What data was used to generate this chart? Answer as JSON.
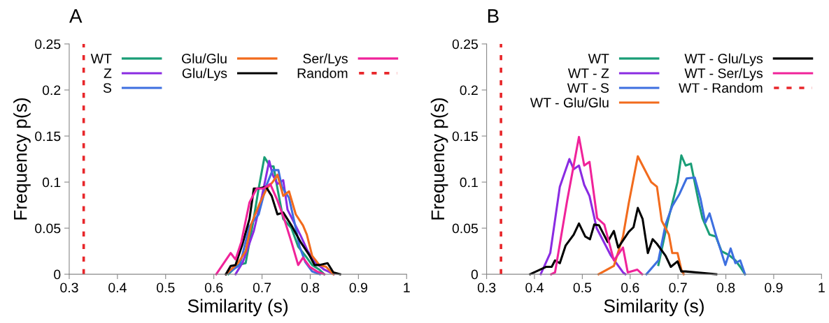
{
  "chart_data": [
    {
      "type": "line",
      "title": "A",
      "xlabel": "Similarity (s)",
      "ylabel": "Frequency p(s)",
      "xlim": [
        0.3,
        1
      ],
      "ylim": [
        0,
        0.25
      ],
      "xticks": [
        0.3,
        0.4,
        0.5,
        0.6,
        0.7,
        0.8,
        0.9,
        1
      ],
      "yticks": [
        0,
        0.05,
        0.1,
        0.15,
        0.2,
        0.25
      ],
      "grid": false,
      "legend": "top right",
      "marker": "none",
      "line_style": "solid",
      "series": [
        {
          "name": "WT",
          "color": "#1a9e77",
          "x": [
            0.63,
            0.65,
            0.666,
            0.681,
            0.693,
            0.705,
            0.717,
            0.724,
            0.732,
            0.744,
            0.761,
            0.775,
            0.79,
            0.804,
            0.819,
            0.829
          ],
          "values": [
            0,
            0.01,
            0.012,
            0.055,
            0.093,
            0.127,
            0.117,
            0.117,
            0.093,
            0.06,
            0.05,
            0.03,
            0.02,
            0.01,
            0.005,
            0
          ]
        },
        {
          "name": "Z",
          "color": "#8a2be2",
          "x": [
            0.645,
            0.66,
            0.683,
            0.7,
            0.715,
            0.722,
            0.732,
            0.744,
            0.753,
            0.78,
            0.795,
            0.81,
            0.829,
            0.849
          ],
          "values": [
            0,
            0.013,
            0.047,
            0.085,
            0.123,
            0.108,
            0.098,
            0.102,
            0.07,
            0.042,
            0.025,
            0.013,
            0.005,
            0
          ]
        },
        {
          "name": "S",
          "color": "#3d6fe0",
          "x": [
            0.625,
            0.654,
            0.674,
            0.693,
            0.708,
            0.722,
            0.734,
            0.741,
            0.756,
            0.77,
            0.778,
            0.79,
            0.804,
            0.82
          ],
          "values": [
            0,
            0.01,
            0.052,
            0.065,
            0.095,
            0.113,
            0.113,
            0.095,
            0.083,
            0.05,
            0.03,
            0.013,
            0.003,
            0
          ]
        },
        {
          "name": "Glu/Glu",
          "color": "#f26b1d",
          "x": [
            0.625,
            0.65,
            0.666,
            0.678,
            0.696,
            0.71,
            0.722,
            0.732,
            0.744,
            0.756,
            0.77,
            0.785,
            0.793,
            0.804,
            0.819,
            0.833,
            0.848
          ],
          "values": [
            0,
            0.012,
            0.025,
            0.055,
            0.078,
            0.093,
            0.1,
            0.108,
            0.085,
            0.09,
            0.065,
            0.053,
            0.043,
            0.02,
            0.01,
            0.008,
            0
          ]
        },
        {
          "name": "Glu/Lys",
          "color": "#000000",
          "x": [
            0.625,
            0.635,
            0.645,
            0.659,
            0.674,
            0.683,
            0.693,
            0.708,
            0.72,
            0.732,
            0.744,
            0.761,
            0.78,
            0.799,
            0.809,
            0.819,
            0.836,
            0.848,
            0.862
          ],
          "values": [
            0,
            0.009,
            0.01,
            0.032,
            0.06,
            0.093,
            0.093,
            0.095,
            0.085,
            0.065,
            0.067,
            0.053,
            0.035,
            0.02,
            0.01,
            0.01,
            0.012,
            0.002,
            0
          ]
        },
        {
          "name": "Ser/Lys",
          "color": "#f0239a",
          "x": [
            0.605,
            0.635,
            0.645,
            0.657,
            0.674,
            0.689,
            0.703,
            0.717,
            0.732,
            0.746,
            0.761,
            0.775,
            0.785,
            0.799,
            0.814,
            0.829
          ],
          "values": [
            0,
            0.023,
            0.016,
            0.035,
            0.078,
            0.093,
            0.093,
            0.098,
            0.08,
            0.06,
            0.035,
            0.01,
            0.018,
            0.008,
            0.003,
            0
          ]
        },
        {
          "name": "Random",
          "color": "#e8262a",
          "line_style": "dashed",
          "x": [
            0.33,
            0.33
          ],
          "values": [
            0,
            0.25
          ]
        }
      ]
    },
    {
      "type": "line",
      "title": "B",
      "xlabel": "Similarity (s)",
      "ylabel": "Frequency p(s)",
      "xlim": [
        0.3,
        1
      ],
      "ylim": [
        0,
        0.25
      ],
      "xticks": [
        0.3,
        0.4,
        0.5,
        0.6,
        0.7,
        0.8,
        0.9,
        1
      ],
      "yticks": [
        0,
        0.05,
        0.1,
        0.15,
        0.2,
        0.25
      ],
      "grid": false,
      "legend": "top right",
      "marker": "none",
      "line_style": "solid",
      "series": [
        {
          "name": "WT",
          "color": "#1a9e77",
          "x": [
            0.659,
            0.678,
            0.699,
            0.707,
            0.716,
            0.727,
            0.743,
            0.751,
            0.766,
            0.779,
            0.791,
            0.806,
            0.82,
            0.83,
            0.84
          ],
          "values": [
            0.01,
            0.056,
            0.1,
            0.129,
            0.118,
            0.12,
            0.079,
            0.061,
            0.043,
            0.041,
            0.025,
            0.021,
            0.015,
            0.008,
            0
          ]
        },
        {
          "name": "WT - Z",
          "color": "#8a2be2",
          "x": [
            0.413,
            0.433,
            0.453,
            0.473,
            0.482,
            0.493,
            0.504,
            0.515,
            0.53,
            0.56,
            0.585,
            0.59
          ],
          "values": [
            0,
            0.023,
            0.095,
            0.125,
            0.114,
            0.118,
            0.097,
            0.085,
            0.05,
            0.02,
            0.002,
            0
          ]
        },
        {
          "name": "WT - S",
          "color": "#3d6fe0",
          "x": [
            0.634,
            0.659,
            0.674,
            0.688,
            0.703,
            0.718,
            0.735,
            0.747,
            0.757,
            0.766,
            0.779,
            0.799,
            0.81,
            0.82,
            0.83,
            0.84
          ],
          "values": [
            0,
            0.015,
            0.054,
            0.074,
            0.087,
            0.104,
            0.105,
            0.082,
            0.056,
            0.066,
            0.043,
            0.01,
            0.028,
            0.012,
            0.015,
            0
          ]
        },
        {
          "name": "WT - Glu/Glu",
          "color": "#f26b1d",
          "x": [
            0.534,
            0.566,
            0.585,
            0.597,
            0.616,
            0.629,
            0.644,
            0.656,
            0.666,
            0.681,
            0.688,
            0.699,
            0.707,
            0.712
          ],
          "values": [
            0,
            0.009,
            0.041,
            0.077,
            0.128,
            0.115,
            0.1,
            0.095,
            0.058,
            0.043,
            0.023,
            0.023,
            0.005,
            0
          ]
        },
        {
          "name": "WT - Glu/Lys",
          "color": "#000000",
          "x": [
            0.391,
            0.424,
            0.436,
            0.443,
            0.453,
            0.465,
            0.482,
            0.493,
            0.506,
            0.516,
            0.525,
            0.535,
            0.553,
            0.566,
            0.575,
            0.597,
            0.607,
            0.616,
            0.626,
            0.637,
            0.647,
            0.656,
            0.674,
            0.685,
            0.699,
            0.707,
            0.716,
            0.78
          ],
          "values": [
            0,
            0.008,
            0.008,
            0.015,
            0.012,
            0.031,
            0.043,
            0.055,
            0.041,
            0.038,
            0.054,
            0.053,
            0.035,
            0.047,
            0.029,
            0.046,
            0.051,
            0.072,
            0.06,
            0.023,
            0.038,
            0.033,
            0.02,
            0.008,
            0.014,
            0.003,
            0.003,
            0
          ]
        },
        {
          "name": "WT - Ser/Lys",
          "color": "#f0239a",
          "x": [
            0.435,
            0.443,
            0.468,
            0.493,
            0.504,
            0.515,
            0.531,
            0.546,
            0.566,
            0.585,
            0.595,
            0.615,
            0.625
          ],
          "values": [
            0,
            0.002,
            0.079,
            0.149,
            0.118,
            0.122,
            0.061,
            0.054,
            0.015,
            0.029,
            0.002,
            0.005,
            0
          ]
        },
        {
          "name": "WT - Random",
          "color": "#e8262a",
          "line_style": "dashed",
          "x": [
            0.33,
            0.33
          ],
          "values": [
            0,
            0.25
          ]
        }
      ]
    }
  ]
}
